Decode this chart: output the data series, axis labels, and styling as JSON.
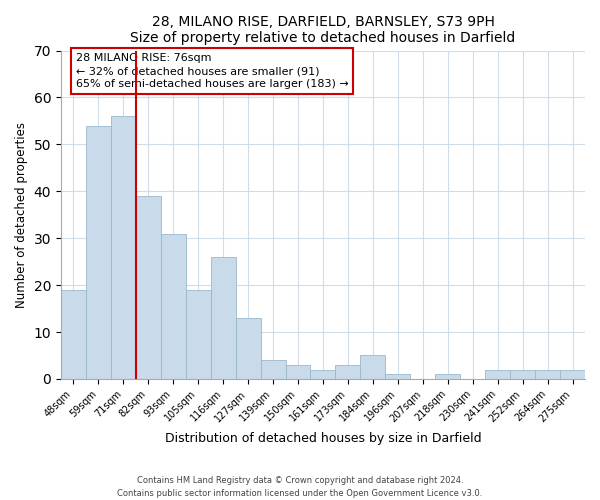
{
  "title": "28, MILANO RISE, DARFIELD, BARNSLEY, S73 9PH",
  "subtitle": "Size of property relative to detached houses in Darfield",
  "xlabel": "Distribution of detached houses by size in Darfield",
  "ylabel": "Number of detached properties",
  "bar_color": "#c9daea",
  "bar_edgecolor": "#9ab8cc",
  "categories": [
    "48sqm",
    "59sqm",
    "71sqm",
    "82sqm",
    "93sqm",
    "105sqm",
    "116sqm",
    "127sqm",
    "139sqm",
    "150sqm",
    "161sqm",
    "173sqm",
    "184sqm",
    "196sqm",
    "207sqm",
    "218sqm",
    "230sqm",
    "241sqm",
    "252sqm",
    "264sqm",
    "275sqm"
  ],
  "values": [
    19,
    54,
    56,
    39,
    31,
    19,
    26,
    13,
    4,
    3,
    2,
    3,
    5,
    1,
    0,
    1,
    0,
    2,
    2,
    2,
    2
  ],
  "redline_index": 2.5,
  "ylim": [
    0,
    70
  ],
  "yticks": [
    0,
    10,
    20,
    30,
    40,
    50,
    60,
    70
  ],
  "annotation_text": "28 MILANO RISE: 76sqm\n← 32% of detached houses are smaller (91)\n65% of semi-detached houses are larger (183) →",
  "annotation_box_color": "#ffffff",
  "annotation_box_edgecolor": "#cc0000",
  "footnote1": "Contains HM Land Registry data © Crown copyright and database right 2024.",
  "footnote2": "Contains public sector information licensed under the Open Government Licence v3.0.",
  "grid_color": "#d0dce8",
  "title_fontsize": 10,
  "subtitle_fontsize": 9
}
